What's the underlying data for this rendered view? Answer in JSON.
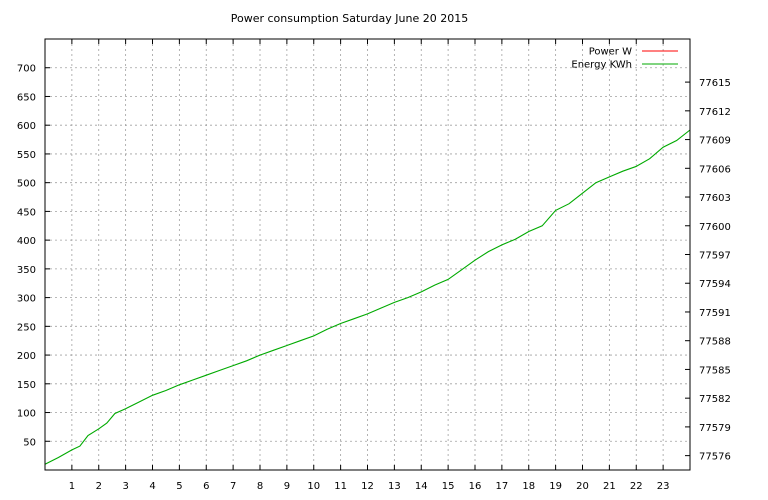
{
  "chart_data": {
    "type": "line",
    "title": "Power consumption Saturday June 20 2015",
    "xlabel": "",
    "ylabel": "",
    "y2label": "",
    "xlim": [
      0,
      24
    ],
    "ylim": [
      0,
      750
    ],
    "y2lim": [
      77574.5,
      77619.5
    ],
    "x_ticks": [
      1,
      2,
      3,
      4,
      5,
      6,
      7,
      8,
      9,
      10,
      11,
      12,
      13,
      14,
      15,
      16,
      17,
      18,
      19,
      20,
      21,
      22,
      23
    ],
    "y_ticks": [
      50,
      100,
      150,
      200,
      250,
      300,
      350,
      400,
      450,
      500,
      550,
      600,
      650,
      700
    ],
    "y2_ticks": [
      77576,
      77579,
      77582,
      77585,
      77588,
      77591,
      77594,
      77597,
      77600,
      77603,
      77606,
      77609,
      77612,
      77615
    ],
    "grid": true,
    "legend_position": "top-right",
    "series": [
      {
        "name": "Power W",
        "color": "#ff0000",
        "axis": "y1",
        "x": [],
        "values": []
      },
      {
        "name": "Energy KWh",
        "color": "#00aa00",
        "axis": "y2",
        "x": [
          0,
          0.5,
          1,
          1.3,
          1.6,
          2,
          2.3,
          2.6,
          3,
          3.5,
          4,
          4.5,
          5,
          5.5,
          6,
          6.5,
          7,
          7.5,
          8,
          8.5,
          9,
          9.5,
          10,
          10.5,
          11,
          11.5,
          12,
          12.5,
          13,
          13.5,
          14,
          14.5,
          15,
          15.5,
          16,
          16.5,
          17,
          17.5,
          18,
          18.5,
          19,
          19.5,
          20,
          20.5,
          21,
          21.5,
          22,
          22.5,
          23,
          23.5,
          24
        ],
        "values": [
          77575.1,
          77575.8,
          77576.6,
          77577.0,
          77578.1,
          77578.8,
          77579.4,
          77580.4,
          77580.9,
          77581.6,
          77582.3,
          77582.8,
          77583.4,
          77583.9,
          77584.4,
          77584.9,
          77585.4,
          77585.9,
          77586.5,
          77587.0,
          77587.5,
          77588.0,
          77588.5,
          77589.2,
          77589.8,
          77590.3,
          77590.8,
          77591.4,
          77592.0,
          77592.5,
          77593.1,
          77593.8,
          77594.4,
          77595.4,
          77596.4,
          77597.3,
          77598.0,
          77598.6,
          77599.4,
          77600.0,
          77601.6,
          77602.3,
          77603.4,
          77604.5,
          77605.1,
          77605.7,
          77606.2,
          77607.0,
          77608.2,
          77608.9,
          77610.0
        ]
      }
    ]
  }
}
